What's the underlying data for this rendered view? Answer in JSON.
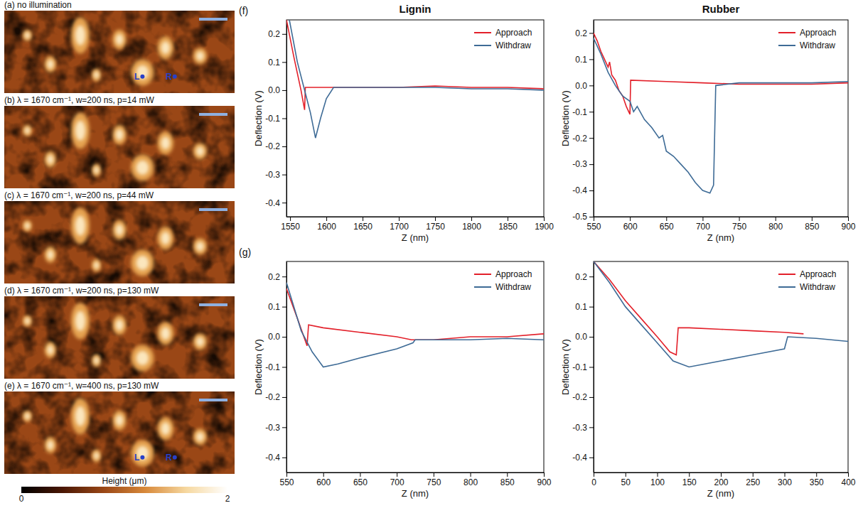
{
  "images": {
    "panels": [
      {
        "title": "(a) no illumination",
        "markers": [
          "L",
          "R"
        ]
      },
      {
        "title": "(b) λ = 1670 cm⁻¹, w=200 ns, p=14 mW",
        "markers": []
      },
      {
        "title": "(c) λ = 1670 cm⁻¹, w=200 ns, p=44 mW",
        "markers": []
      },
      {
        "title": "(d) λ = 1670 cm⁻¹, w=200 ns, p=130 mW",
        "markers": []
      },
      {
        "title": "(e) λ = 1670 cm⁻¹, w=400 ns, p=130 mW",
        "markers": [
          "L",
          "R"
        ]
      }
    ],
    "colorbar": {
      "label": "Height (μm)",
      "range": [
        0,
        2
      ],
      "ticks": [
        0,
        2
      ]
    }
  },
  "row_labels": [
    "(f)",
    "(g)"
  ],
  "chart_data": [
    {
      "type": "line",
      "title": "Lignin",
      "xlabel": "Z (nm)",
      "ylabel": "Deflection (V)",
      "xlim": [
        1545,
        1900
      ],
      "xticks": [
        1550,
        1600,
        1650,
        1700,
        1750,
        1800,
        1850,
        1900
      ],
      "ylim": [
        -0.45,
        0.25
      ],
      "yticks": [
        0.2,
        0.1,
        {
          "value": 0,
          "label": "0.0"
        },
        -0.1,
        -0.2,
        -0.3,
        -0.4
      ],
      "legend": "upper right",
      "series": [
        {
          "name": "Approach",
          "color": "#e3202a",
          "x": [
            1545,
            1555,
            1565,
            1570,
            1571,
            1600,
            1650,
            1700,
            1750,
            1800,
            1850,
            1900
          ],
          "values": [
            0.25,
            0.12,
            0.0,
            -0.07,
            0.01,
            0.01,
            0.01,
            0.01,
            0.015,
            0.01,
            0.01,
            0.005
          ]
        },
        {
          "name": "Withdraw",
          "color": "#3e6b96",
          "x": [
            1549,
            1560,
            1570,
            1578,
            1585,
            1592,
            1600,
            1610,
            1650,
            1700,
            1750,
            1800,
            1850,
            1900
          ],
          "values": [
            0.25,
            0.1,
            0.0,
            -0.08,
            -0.17,
            -0.1,
            -0.03,
            0.01,
            0.01,
            0.01,
            0.01,
            0.005,
            0.005,
            0.0
          ]
        }
      ]
    },
    {
      "type": "line",
      "title": "Rubber",
      "xlabel": "Z (nm)",
      "ylabel": "Deflection (V)",
      "xlim": [
        550,
        900
      ],
      "xticks": [
        550,
        600,
        650,
        700,
        750,
        800,
        850,
        900
      ],
      "ylim": [
        -0.5,
        0.25
      ],
      "yticks": [
        0.2,
        0.1,
        {
          "value": 0,
          "label": "0.0"
        },
        -0.1,
        -0.2,
        -0.3,
        -0.4,
        -0.5
      ],
      "legend": "upper right",
      "series": [
        {
          "name": "Approach",
          "color": "#e3202a",
          "x": [
            550,
            555,
            560,
            565,
            570,
            572,
            575,
            580,
            585,
            590,
            595,
            600,
            601,
            650,
            700,
            750,
            800,
            850,
            900
          ],
          "values": [
            0.2,
            0.17,
            0.13,
            0.1,
            0.07,
            0.09,
            0.04,
            0.02,
            -0.02,
            -0.04,
            -0.08,
            -0.11,
            0.02,
            0.015,
            0.01,
            0.005,
            0.005,
            0.005,
            0.01
          ]
        },
        {
          "name": "Withdraw",
          "color": "#3e6b96",
          "x": [
            550,
            560,
            570,
            580,
            590,
            600,
            605,
            610,
            620,
            630,
            640,
            645,
            650,
            660,
            670,
            680,
            690,
            700,
            710,
            715,
            718,
            750,
            800,
            850,
            900
          ],
          "values": [
            0.18,
            0.12,
            0.05,
            0.0,
            -0.04,
            -0.06,
            -0.1,
            -0.08,
            -0.13,
            -0.16,
            -0.2,
            -0.19,
            -0.25,
            -0.27,
            -0.3,
            -0.33,
            -0.37,
            -0.4,
            -0.41,
            -0.38,
            0.0,
            0.01,
            0.01,
            0.01,
            0.015
          ]
        }
      ]
    },
    {
      "type": "line",
      "xlabel": "Z (nm)",
      "ylabel": "Deflection (V)",
      "xlim": [
        550,
        900
      ],
      "xticks": [
        550,
        600,
        650,
        700,
        750,
        800,
        850,
        900
      ],
      "ylim": [
        -0.45,
        0.25
      ],
      "yticks": [
        0.2,
        0.1,
        {
          "value": 0,
          "label": "0.0"
        },
        -0.1,
        -0.2,
        -0.3,
        -0.4
      ],
      "legend": "upper right",
      "series": [
        {
          "name": "Approach",
          "color": "#e3202a",
          "x": [
            550,
            565,
            578,
            580,
            600,
            650,
            700,
            720,
            750,
            800,
            850,
            900
          ],
          "values": [
            0.16,
            0.06,
            -0.03,
            0.04,
            0.03,
            0.015,
            0.0,
            -0.01,
            -0.01,
            0.0,
            0.0,
            0.01
          ]
        },
        {
          "name": "Withdraw",
          "color": "#3e6b96",
          "x": [
            550,
            570,
            585,
            600,
            620,
            650,
            700,
            722,
            725,
            750,
            800,
            850,
            900
          ],
          "values": [
            0.18,
            0.02,
            -0.05,
            -0.1,
            -0.09,
            -0.07,
            -0.04,
            -0.02,
            -0.01,
            -0.01,
            -0.01,
            -0.005,
            -0.01
          ]
        }
      ]
    },
    {
      "type": "line",
      "xlabel": "Z (nm)",
      "ylabel": "Deflection (V)",
      "xlim": [
        0,
        400
      ],
      "xticks": [
        0,
        50,
        100,
        150,
        200,
        250,
        300,
        350,
        400
      ],
      "ylim": [
        -0.45,
        0.25
      ],
      "yticks": [
        0.2,
        0.1,
        {
          "value": 0,
          "label": "0.0"
        },
        -0.1,
        -0.2,
        -0.3,
        -0.4
      ],
      "legend": "upper right",
      "series": [
        {
          "name": "Approach",
          "color": "#e3202a",
          "x": [
            0,
            25,
            50,
            75,
            100,
            120,
            130,
            133,
            150,
            200,
            250,
            300,
            330
          ],
          "values": [
            0.25,
            0.19,
            0.12,
            0.06,
            0.0,
            -0.05,
            -0.06,
            0.03,
            0.03,
            0.025,
            0.02,
            0.015,
            0.01
          ]
        },
        {
          "name": "Withdraw",
          "color": "#3e6b96",
          "x": [
            0,
            25,
            50,
            75,
            100,
            125,
            150,
            175,
            200,
            250,
            300,
            305,
            350,
            400
          ],
          "values": [
            0.25,
            0.18,
            0.1,
            0.04,
            -0.02,
            -0.08,
            -0.1,
            -0.09,
            -0.08,
            -0.06,
            -0.04,
            0.0,
            -0.005,
            -0.015
          ]
        }
      ]
    }
  ]
}
